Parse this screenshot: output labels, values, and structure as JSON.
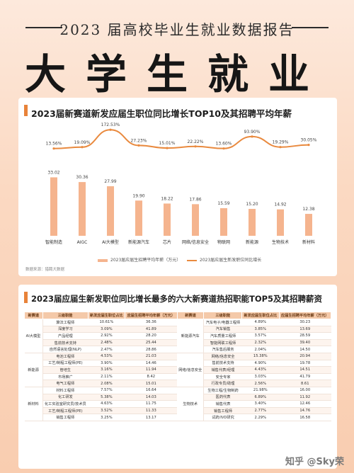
{
  "header": {
    "subtitle": "2023 届高校毕业生就业数据报告",
    "title": "大学生就业"
  },
  "chart1": {
    "title": "2023届新赛道新发应届生职位同比增长TOP10及其招聘平均年薪",
    "source": "数据来源：猎聘大数据"
  },
  "chart_data": [
    {
      "type": "bar",
      "title": "2023届新赛道新发应届生职位同比增长TOP10及其招聘平均年薪",
      "categories": [
        "智能制造",
        "AIGC",
        "AI大模型",
        "新能源汽车",
        "芯片",
        "网络/信息安全",
        "物联网",
        "新能源",
        "生物技术",
        "新材料"
      ],
      "series": [
        {
          "name": "2023届应届生招聘平均年薪（万元）",
          "type": "bar",
          "values": [
            33.02,
            30.36,
            27.99,
            19.9,
            18.22,
            17.86,
            15.59,
            15.2,
            14.92,
            12.38
          ]
        },
        {
          "name": "2023届应届生新发职位同比增长",
          "type": "line",
          "values": [
            13.56,
            19.09,
            172.53,
            27.23,
            15.01,
            22.22,
            13.6,
            93.9,
            19.29,
            30.05
          ],
          "labels": [
            "13.56%",
            "19.09%",
            "172.53%",
            "27.23%",
            "15.01%",
            "22.22%",
            "13.60%",
            "93.90%",
            "19.29%",
            "30.05%"
          ]
        }
      ],
      "colors": {
        "bar": "#f5b48e",
        "line": "#e98a3f"
      }
    },
    {
      "type": "table",
      "title": "2023届应届生新发职位同比增长最多的六大新赛道热招职能TOP5及其招聘薪资",
      "columns": [
        "新赛道",
        "三级职能",
        "新发应届生职位占比",
        "应届生招聘平均年薪（万元）",
        "新赛道",
        "三级职能",
        "新发应届生职位占比",
        "应届生招聘平均年薪（万元）"
      ],
      "groups": [
        {
          "left": "AI大模型",
          "right": "新能源汽车",
          "rows": [
            [
              "算法工程师",
              "10.61%",
              "36.36",
              "汽车电子/电器工程师",
              "4.89%",
              "30.23"
            ],
            [
              "深度学习",
              "3.09%",
              "41.89",
              "汽车销售",
              "3.85%",
              "13.69"
            ],
            [
              "产品经理",
              "2.92%",
              "28.20",
              "汽车质量工程师",
              "3.57%",
              "28.59"
            ],
            [
              "售前技术支持",
              "2.48%",
              "25.44",
              "智能网联工程师",
              "2.32%",
              "39.40"
            ],
            [
              "自然语言处理(NLP)",
              "2.47%",
              "28.86",
              "汽车售后服务",
              "2.04%",
              "14.50"
            ]
          ]
        },
        {
          "left": "新能源",
          "right": "网络/信息安全",
          "rows": [
            [
              "电池工程师",
              "4.53%",
              "21.03",
              "网络/信息安全",
              "15.38%",
              "20.94"
            ],
            [
              "工艺/制程工程师(PE)",
              "3.90%",
              "14.46",
              "售前技术支持",
              "4.90%",
              "19.78"
            ],
            [
              "管培生",
              "3.16%",
              "11.94",
              "销售代表/经理",
              "4.43%",
              "14.51"
            ],
            [
              "市场推广",
              "2.11%",
              "8.42",
              "安全专家",
              "3.03%",
              "41.79"
            ],
            [
              "电气工程师",
              "2.08%",
              "15.01",
              "行政专员/助理",
              "2.56%",
              "8.61"
            ]
          ]
        },
        {
          "left": "新材料",
          "right": "生物技术",
          "rows": [
            [
              "材料工程师",
              "7.57%",
              "16.64",
              "生物工程/生物制药",
              "21.98%",
              "16.00"
            ],
            [
              "化工研发",
              "5.38%",
              "14.03",
              "医药代表",
              "6.89%",
              "11.92"
            ],
            [
              "化工实验室研究员/技术员",
              "4.63%",
              "11.75",
              "销售代表",
              "3.40%",
              "12.46"
            ],
            [
              "工艺/制程工程师(PE)",
              "3.52%",
              "11.33",
              "销售工程师",
              "2.77%",
              "14.76"
            ],
            [
              "销售工程师",
              "3.25%",
              "13.17",
              "试药/IVD研究",
              "2.29%",
              "16.58"
            ]
          ]
        }
      ]
    }
  ],
  "watermark": "知乎 @Sky荣"
}
